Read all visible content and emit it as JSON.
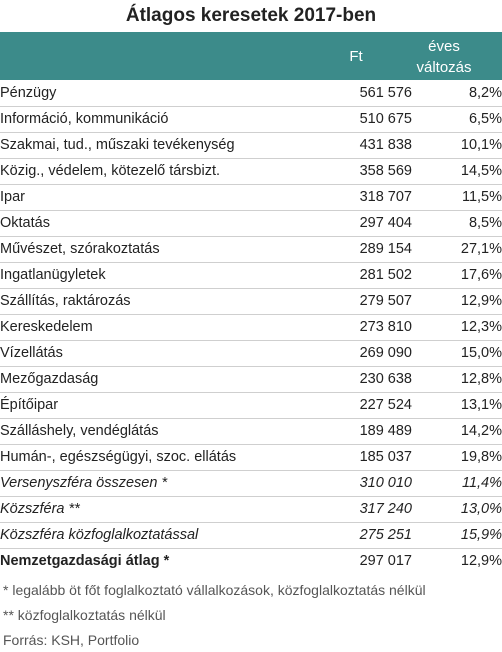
{
  "title": "Átlagos keresetek 2017-ben",
  "header": {
    "col_ft": "Ft",
    "col_chg_line1": "éves",
    "col_chg_line2": "változás"
  },
  "rows": [
    {
      "label": "Pénzügy",
      "ft": "561 576",
      "chg": "8,2%"
    },
    {
      "label": "Információ, kommunikáció",
      "ft": "510 675",
      "chg": "6,5%"
    },
    {
      "label": "Szakmai, tud., műszaki tevékenység",
      "ft": "431 838",
      "chg": "10,1%"
    },
    {
      "label": "Közig., védelem, kötezelő társbizt.",
      "ft": "358 569",
      "chg": "14,5%"
    },
    {
      "label": "Ipar",
      "ft": "318 707",
      "chg": "11,5%"
    },
    {
      "label": "Oktatás",
      "ft": "297 404",
      "chg": "8,5%"
    },
    {
      "label": "Művészet, szórakoztatás",
      "ft": "289 154",
      "chg": "27,1%"
    },
    {
      "label": "Ingatlanügyletek",
      "ft": "281 502",
      "chg": "17,6%"
    },
    {
      "label": "Szállítás, raktározás",
      "ft": "279 507",
      "chg": "12,9%"
    },
    {
      "label": "Kereskedelem",
      "ft": "273 810",
      "chg": "12,3%"
    },
    {
      "label": "Vízellátás",
      "ft": "269 090",
      "chg": "15,0%"
    },
    {
      "label": "Mezőgazdaság",
      "ft": "230 638",
      "chg": "12,8%"
    },
    {
      "label": "Építőipar",
      "ft": "227 524",
      "chg": "13,1%"
    },
    {
      "label": "Szálláshely, vendéglátás",
      "ft": "189 489",
      "chg": "14,2%"
    },
    {
      "label": "Humán-, egészségügyi, szoc. ellátás",
      "ft": "185 037",
      "chg": "19,8%"
    }
  ],
  "summary_rows": [
    {
      "label": "Versenyszféra összesen *",
      "ft": "310 010",
      "chg": "11,4%"
    },
    {
      "label": "Közszféra **",
      "ft": "317 240",
      "chg": "13,0%"
    },
    {
      "label": "Közszféra közfoglalkoztatással",
      "ft": "275 251",
      "chg": "15,9%"
    }
  ],
  "total_row": {
    "label": "Nemzetgazdasági átlag *",
    "ft": "297 017",
    "chg": "12,9%"
  },
  "notes": [
    "* legalább öt főt foglalkoztató vállalkozások, közfoglalkoztatás nélkül",
    "** közfoglalkoztatás nélkül",
    "Forrás: KSH, Portfolio"
  ],
  "colors": {
    "header_bg": "#3c8b8a"
  }
}
